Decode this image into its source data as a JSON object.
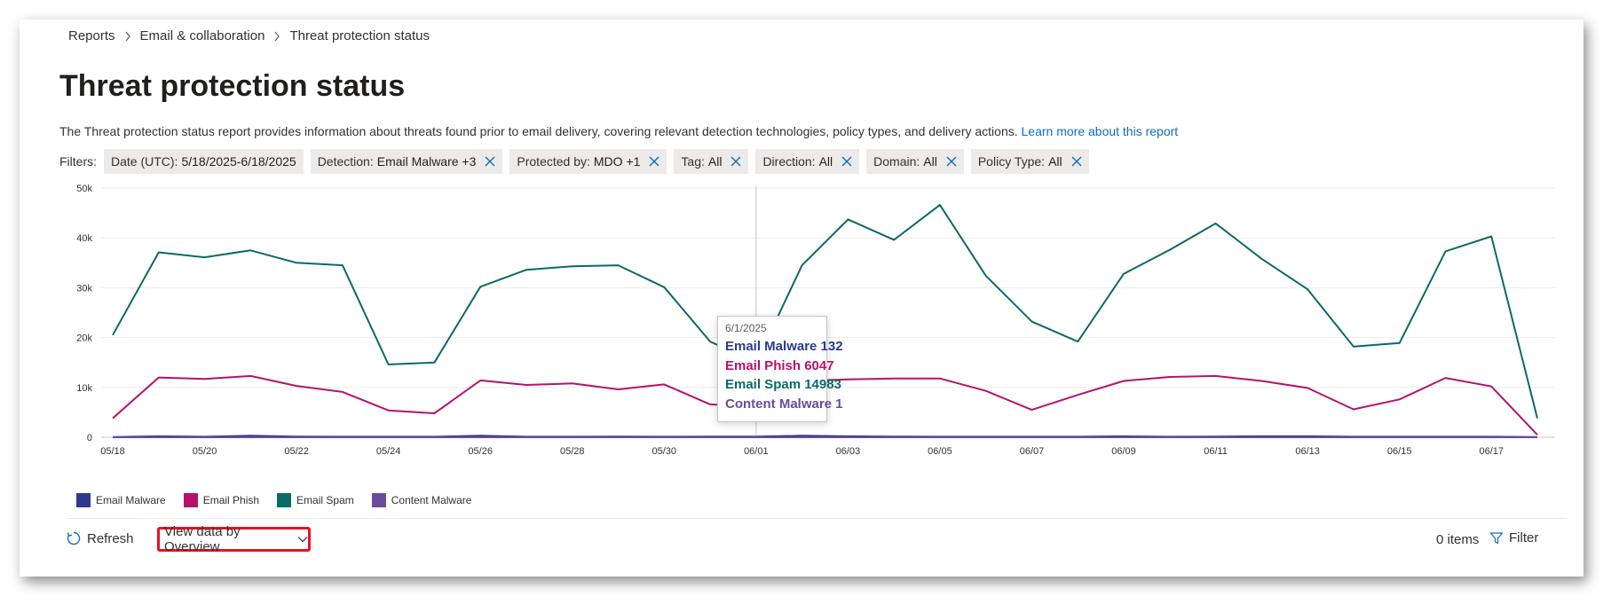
{
  "breadcrumb": {
    "items": [
      "Reports",
      "Email & collaboration",
      "Threat protection status"
    ]
  },
  "page": {
    "title": "Threat protection status",
    "description": "The Threat protection status report provides information about threats found prior to email delivery, covering relevant detection technologies, policy types, and delivery actions.",
    "learn_more": "Learn more about this report"
  },
  "filters": {
    "label": "Filters:",
    "chips": [
      {
        "key": "Date (UTC):",
        "value": "5/18/2025-6/18/2025",
        "removable": false
      },
      {
        "key": "Detection:",
        "value": "Email Malware +3",
        "removable": true
      },
      {
        "key": "Protected by:",
        "value": "MDO +1",
        "removable": true
      },
      {
        "key": "Tag:",
        "value": "All",
        "removable": true
      },
      {
        "key": "Direction:",
        "value": "All",
        "removable": true
      },
      {
        "key": "Domain:",
        "value": "All",
        "removable": true
      },
      {
        "key": "Policy Type:",
        "value": "All",
        "removable": true
      }
    ]
  },
  "chart_data": {
    "type": "line",
    "ylim": [
      0,
      50000
    ],
    "y_ticks": [
      "0",
      "10k",
      "20k",
      "30k",
      "40k",
      "50k"
    ],
    "x_ticks": [
      "05/18",
      "05/20",
      "05/22",
      "05/24",
      "05/26",
      "05/28",
      "05/30",
      "06/01",
      "06/03",
      "06/05",
      "06/07",
      "06/09",
      "06/11",
      "06/13",
      "06/15",
      "06/17"
    ],
    "x": [
      "05/18",
      "05/19",
      "05/20",
      "05/21",
      "05/22",
      "05/23",
      "05/24",
      "05/25",
      "05/26",
      "05/27",
      "05/28",
      "05/29",
      "05/30",
      "05/31",
      "06/01",
      "06/02",
      "06/03",
      "06/04",
      "06/05",
      "06/06",
      "06/07",
      "06/08",
      "06/09",
      "06/10",
      "06/11",
      "06/12",
      "06/13",
      "06/14",
      "06/15",
      "06/16",
      "06/17",
      "06/18"
    ],
    "grid": true,
    "legend_position": "bottom-left",
    "series": [
      {
        "name": "Email Malware",
        "color": "#2e3a8c",
        "values": [
          50,
          200,
          100,
          300,
          150,
          100,
          100,
          100,
          300,
          100,
          100,
          150,
          100,
          120,
          132,
          300,
          200,
          150,
          100,
          100,
          100,
          100,
          200,
          100,
          150,
          200,
          200,
          100,
          100,
          100,
          100,
          50
        ]
      },
      {
        "name": "Email Phish",
        "color": "#b4126e",
        "values": [
          3800,
          12000,
          11700,
          12300,
          10300,
          9100,
          5400,
          4800,
          11400,
          10500,
          10800,
          9600,
          10600,
          6600,
          6047,
          11300,
          11600,
          11800,
          11800,
          9300,
          5500,
          8500,
          11300,
          12100,
          12300,
          11300,
          9900,
          5600,
          7600,
          11900,
          10200,
          500
        ]
      },
      {
        "name": "Email Spam",
        "color": "#0b6a66",
        "values": [
          20500,
          37100,
          36100,
          37500,
          35000,
          34500,
          14600,
          15000,
          30200,
          33600,
          34300,
          34500,
          30100,
          19200,
          14983,
          34500,
          43700,
          39600,
          46600,
          32400,
          23200,
          19200,
          32800,
          37600,
          42900,
          35800,
          29700,
          18200,
          18900,
          37300,
          40300,
          3800
        ]
      },
      {
        "name": "Content Malware",
        "color": "#6a4c9c",
        "values": [
          0,
          0,
          0,
          0,
          0,
          0,
          0,
          0,
          0,
          0,
          0,
          0,
          0,
          0,
          1,
          0,
          0,
          0,
          0,
          0,
          0,
          0,
          0,
          0,
          0,
          0,
          0,
          0,
          0,
          0,
          0,
          0
        ]
      }
    ],
    "tooltip": {
      "date": "6/1/2025",
      "rows": [
        "Email Malware 132",
        "Email Phish 6047",
        "Email Spam 14983",
        "Content Malware 1"
      ]
    }
  },
  "toolbar": {
    "refresh_label": "Refresh",
    "view_data_label": "View data by Overview",
    "items_count": "0 items",
    "filter_label": "Filter"
  },
  "icons": {
    "chevron_right": "chevron-right-icon",
    "dismiss": "dismiss-icon",
    "refresh": "refresh-icon",
    "chevron_down": "chevron-down-icon",
    "filter": "filter-icon"
  },
  "colors": {
    "link": "#0f6cbd",
    "highlight_border": "#e81123",
    "chip_bg": "#edebe9"
  }
}
